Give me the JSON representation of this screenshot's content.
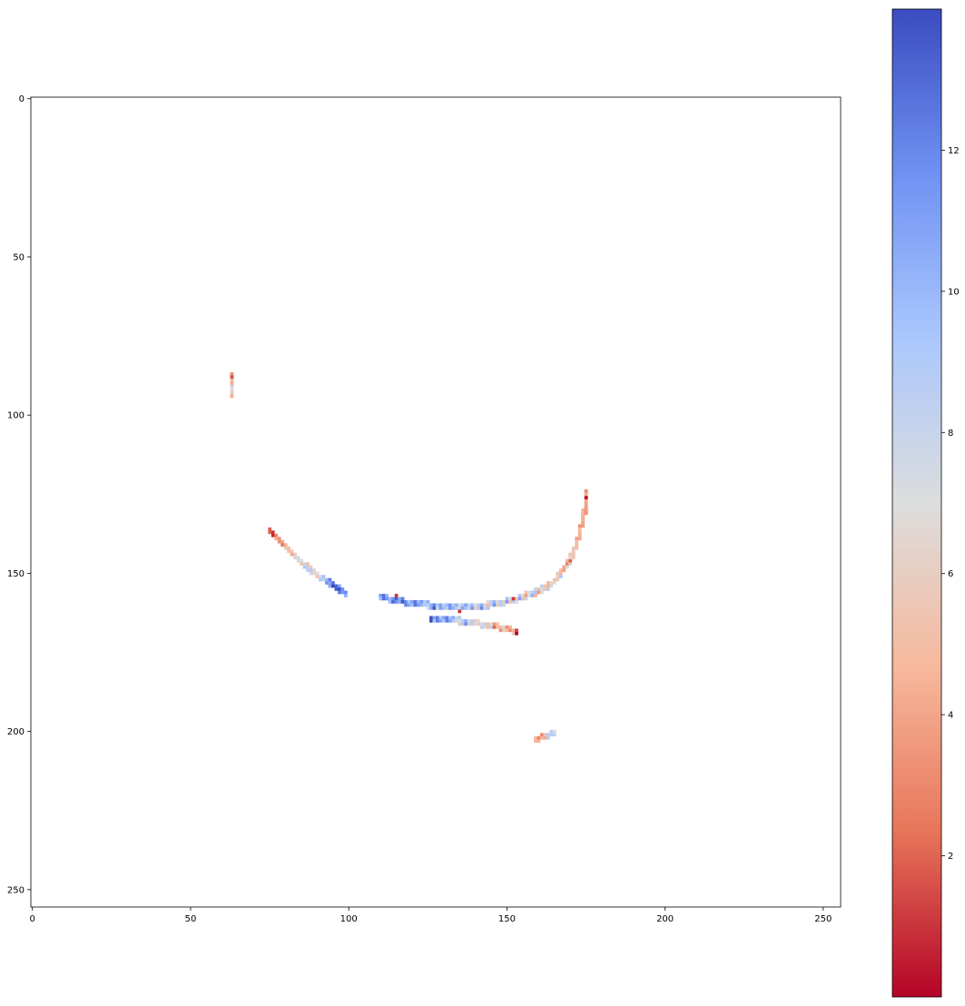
{
  "chart_data": {
    "type": "heatmap",
    "title": "",
    "xlabel": "",
    "ylabel": "",
    "image_size": [
      256,
      256
    ],
    "xlim": [
      0,
      255
    ],
    "ylim": [
      255,
      0
    ],
    "x_ticks": [
      0,
      50,
      100,
      150,
      200,
      250
    ],
    "y_ticks": [
      0,
      50,
      100,
      150,
      200,
      250
    ],
    "colormap": "coolwarm_r",
    "colorbar": {
      "range": [
        0,
        14
      ],
      "ticks": [
        2,
        4,
        6,
        8,
        10,
        12
      ],
      "colors": [
        "#b40426",
        "#e7755a",
        "#f7b89c",
        "#dcdddd",
        "#aac7fd",
        "#6f92f3",
        "#3b4cc0"
      ]
    },
    "segments": [
      {
        "name": "vertical stub",
        "points": [
          [
            63,
            87
          ],
          [
            63,
            93
          ]
        ],
        "value_start": 3,
        "value_end": 8
      },
      {
        "name": "left diagonal stroke",
        "points": [
          [
            75,
            136
          ],
          [
            80,
            141
          ],
          [
            85,
            146
          ],
          [
            90,
            150
          ],
          [
            95,
            153
          ],
          [
            99,
            156
          ]
        ],
        "value_start": 1,
        "value_end": 13
      },
      {
        "name": "main arc",
        "points": [
          [
            110,
            157
          ],
          [
            120,
            159
          ],
          [
            130,
            160
          ],
          [
            140,
            160
          ],
          [
            148,
            159
          ],
          [
            155,
            157
          ],
          [
            160,
            155
          ],
          [
            165,
            152
          ],
          [
            168,
            148
          ],
          [
            171,
            143
          ],
          [
            173,
            137
          ],
          [
            174,
            132
          ],
          [
            175,
            128
          ],
          [
            175,
            124
          ]
        ],
        "value_start": 12,
        "value_end": 3
      },
      {
        "name": "lower stroke",
        "points": [
          [
            126,
            164
          ],
          [
            132,
            164
          ],
          [
            138,
            165
          ],
          [
            145,
            166
          ],
          [
            150,
            167
          ],
          [
            153,
            168
          ]
        ],
        "value_start": 12,
        "value_end": 3
      },
      {
        "name": "small fragment",
        "points": [
          [
            159,
            202
          ],
          [
            162,
            201
          ],
          [
            165,
            200
          ]
        ],
        "value_start": 3,
        "value_end": 9
      }
    ],
    "isolated_pixels": [
      {
        "x": 135,
        "y": 162,
        "value": 1
      },
      {
        "x": 115,
        "y": 157,
        "value": 1
      },
      {
        "x": 152,
        "y": 158,
        "value": 1
      },
      {
        "x": 76,
        "y": 137,
        "value": 1
      }
    ]
  }
}
